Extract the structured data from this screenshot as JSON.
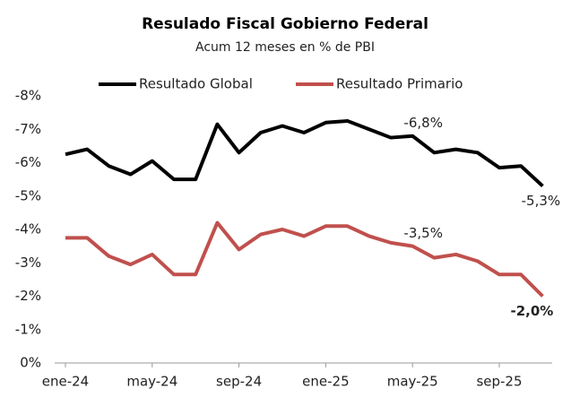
{
  "chart_data": {
    "type": "line",
    "title": "Resulado Fiscal Gobierno Federal",
    "subtitle": "Acum 12 meses en % de PBI",
    "categories": [
      "ene-24",
      null,
      null,
      null,
      "may-24",
      null,
      null,
      null,
      "sep-24",
      null,
      null,
      null,
      "ene-25",
      null,
      null,
      null,
      "may-25",
      null,
      null,
      null,
      "sep-25",
      null,
      null
    ],
    "ylim": [
      0,
      -8
    ],
    "yticks": [
      {
        "value": -8,
        "label": "-8%"
      },
      {
        "value": -7,
        "label": "-7%"
      },
      {
        "value": -6,
        "label": "-6%"
      },
      {
        "value": -5,
        "label": "-5%"
      },
      {
        "value": -4,
        "label": "-4%"
      },
      {
        "value": -3,
        "label": "-3%"
      },
      {
        "value": -2,
        "label": "-2%"
      },
      {
        "value": -1,
        "label": "-1%"
      },
      {
        "value": 0,
        "label": "0%"
      }
    ],
    "series": [
      {
        "name": "Resultado Global",
        "color": "#000000",
        "values": [
          -6.25,
          -6.4,
          -5.9,
          -5.65,
          -6.05,
          -5.5,
          -5.5,
          -7.15,
          -6.3,
          -6.9,
          -7.1,
          -6.9,
          -7.2,
          -7.25,
          -7.0,
          -6.75,
          -6.8,
          -6.3,
          -6.4,
          -6.3,
          -5.85,
          -5.9,
          -5.3
        ],
        "value_labels": [
          null,
          null,
          null,
          null,
          null,
          null,
          null,
          null,
          null,
          null,
          null,
          null,
          null,
          null,
          null,
          null,
          "-6,8%",
          null,
          null,
          null,
          null,
          null,
          "-5,3%"
        ]
      },
      {
        "name": "Resultado Primario",
        "color": "#c0504d",
        "values": [
          -3.75,
          -3.75,
          -3.2,
          -2.95,
          -3.25,
          -2.65,
          -2.65,
          -4.2,
          -3.4,
          -3.85,
          -4.0,
          -3.8,
          -4.1,
          -4.1,
          -3.8,
          -3.6,
          -3.5,
          -3.15,
          -3.25,
          -3.05,
          -2.65,
          -2.65,
          -2.0
        ],
        "value_labels": [
          null,
          null,
          null,
          null,
          null,
          null,
          null,
          null,
          null,
          null,
          null,
          null,
          null,
          null,
          null,
          null,
          "-3,5%",
          null,
          null,
          null,
          null,
          null,
          "-2,0%"
        ]
      }
    ]
  }
}
